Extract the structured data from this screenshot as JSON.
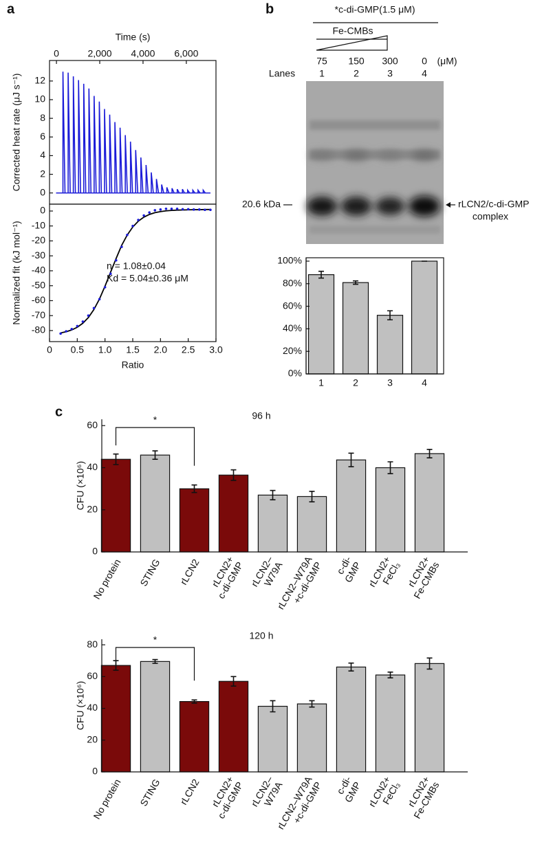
{
  "chart_data": [
    {
      "type": "spike",
      "x_label": "Time (s)",
      "y_label": "Corrected heat rate (μJ s⁻¹)",
      "color": "#1c1cd8",
      "x": [
        300,
        540,
        780,
        1020,
        1260,
        1500,
        1740,
        1980,
        2220,
        2460,
        2700,
        2940,
        3180,
        3420,
        3660,
        3900,
        4140,
        4380,
        4620,
        4860,
        5100,
        5340,
        5580,
        5820,
        6060,
        6300,
        6540,
        6780
      ],
      "values": [
        13,
        12.9,
        12.5,
        12.1,
        11.7,
        11.2,
        10.4,
        9.8,
        9.0,
        8.4,
        7.6,
        7.0,
        6.2,
        5.5,
        4.6,
        3.8,
        3.0,
        2.2,
        1.5,
        0.9,
        0.6,
        0.5,
        0.4,
        0.4,
        0.3,
        0.3,
        0.3,
        0.3
      ],
      "xlim": [
        -320,
        7370
      ],
      "xticks": [
        0,
        {
          "value": 2000,
          "label": "2,000"
        },
        {
          "value": 4000,
          "label": "4,000"
        },
        {
          "value": 6000,
          "label": "6,000"
        }
      ],
      "ylim": [
        -1.2,
        14.2
      ],
      "yticks": [
        0,
        2,
        4,
        6,
        8,
        10,
        12
      ]
    },
    {
      "type": "scatter",
      "x_label": "Ratio",
      "y_label": "Normalized fit (kJ mol⁻¹)",
      "annotations": [
        "n = 1.08±0.04",
        "Kd = 5.04±0.36 μM"
      ],
      "x": [
        0.2,
        0.3,
        0.4,
        0.5,
        0.6,
        0.7,
        0.8,
        0.9,
        1.0,
        1.1,
        1.2,
        1.3,
        1.4,
        1.5,
        1.6,
        1.7,
        1.8,
        1.9,
        2.0,
        2.1,
        2.2,
        2.3,
        2.4,
        2.5,
        2.6,
        2.7,
        2.8,
        2.9
      ],
      "series": [
        {
          "color": "#1c1cd8",
          "values": [
            -82,
            -80.5,
            -79,
            -77,
            -74,
            -70,
            -65,
            -59,
            -51,
            -42,
            -33,
            -24,
            -16,
            -10,
            -6,
            -3,
            -1,
            0.5,
            1,
            1.5,
            1.5,
            1.5,
            1.2,
            1.2,
            1,
            1,
            0.8,
            0.8
          ]
        }
      ],
      "fit": {
        "color": "#000000",
        "values": [
          -81.6,
          -80.8,
          -79.6,
          -77.8,
          -75.1,
          -71.3,
          -65.9,
          -58.9,
          -50.3,
          -41,
          -31.8,
          -23,
          -16.1,
          -10.7,
          -6.8,
          -4.1,
          -2.3,
          -1.1,
          -0.4,
          0.1,
          0.4,
          0.6,
          0.7,
          0.8,
          0.9,
          0.9,
          1,
          1
        ]
      },
      "xlim": [
        0,
        3
      ],
      "xticks": [
        0,
        0.5,
        {
          "value": 1,
          "label": "1.0"
        },
        1.5,
        {
          "value": 2,
          "label": "2.0"
        },
        2.5,
        {
          "value": 3,
          "label": "3.0"
        }
      ],
      "ylim": [
        -87.4,
        4.6
      ],
      "yticks": [
        0,
        -10,
        -20,
        -30,
        -40,
        -50,
        -60,
        -70,
        -80
      ]
    },
    {
      "type": "bar",
      "categories": [
        "1",
        "2",
        "3",
        "4"
      ],
      "values": [
        88,
        81,
        52,
        100
      ],
      "errors": [
        3,
        1.5,
        4,
        0
      ],
      "colors": [
        "#c0c0c0",
        "#c0c0c0",
        "#c0c0c0",
        "#c0c0c0"
      ],
      "ylim": [
        0,
        103
      ],
      "yticks": [
        {
          "value": 0,
          "label": "0%"
        },
        {
          "value": 20,
          "label": "20%"
        },
        {
          "value": 40,
          "label": "40%"
        },
        {
          "value": 60,
          "label": "60%"
        },
        {
          "value": 80,
          "label": "80%"
        },
        {
          "value": 100,
          "label": "100%"
        }
      ]
    },
    {
      "type": "bar",
      "title": "96 h",
      "y_label": "CFU (×10⁶)",
      "significance": "*",
      "categories": [
        "No protein",
        "STING",
        "rLCN2",
        "rLCN2+\nc-di-GMP",
        "rLCN2–\nW79A",
        "rLCN2–W79A\n+c-di-GMP",
        "c-di-\nGMP",
        "rLCN2+\nFeCl₃",
        "rLCN2+\nFe-CMBs"
      ],
      "values": [
        44,
        46,
        30,
        36.5,
        27,
        26.3,
        43.7,
        40,
        46.7
      ],
      "errors": [
        2.5,
        2,
        1.8,
        2.5,
        2.2,
        2.5,
        3.2,
        2.8,
        2
      ],
      "colors": [
        "#7a0a0a",
        "#c0c0c0",
        "#7a0a0a",
        "#7a0a0a",
        "#c0c0c0",
        "#c0c0c0",
        "#c0c0c0",
        "#c0c0c0",
        "#c0c0c0"
      ],
      "ylim": [
        0,
        63
      ],
      "yticks": [
        0,
        20,
        40,
        60
      ]
    },
    {
      "type": "bar",
      "title": "120 h",
      "y_label": "CFU (×10⁶)",
      "significance": "*",
      "categories": [
        "No protein",
        "STING",
        "rLCN2",
        "rLCN2+\nc-di-GMP",
        "rLCN2–\nW79A",
        "rLCN2–W79A\n+c-di-GMP",
        "c-di-\nGMP",
        "rLCN2+\nFeCl₃",
        "rLCN2+\nFe-CMBs"
      ],
      "values": [
        67,
        69.5,
        44.3,
        57,
        41.3,
        42.8,
        66,
        61,
        68.2
      ],
      "errors": [
        3,
        1.2,
        1,
        3,
        3.5,
        2,
        2.5,
        1.8,
        3.5
      ],
      "colors": [
        "#7a0a0a",
        "#c0c0c0",
        "#7a0a0a",
        "#7a0a0a",
        "#c0c0c0",
        "#c0c0c0",
        "#c0c0c0",
        "#c0c0c0",
        "#c0c0c0"
      ],
      "ylim": [
        0,
        83.5
      ],
      "yticks": [
        0,
        20,
        40,
        60,
        80
      ]
    }
  ],
  "panels": [
    "a",
    "b",
    "c"
  ],
  "gel": {
    "header": "*c-di-GMP(1.5 μM)",
    "gradient_label": "Fe-CMBs",
    "concentrations": [
      "75",
      "150",
      "300",
      "0"
    ],
    "unit": "(μM)",
    "lanes_label": "Lanes",
    "lanes": [
      "1",
      "2",
      "3",
      "4"
    ],
    "marker": "20.6 kDa",
    "band_label": [
      "rLCN2/c-di-GMP",
      "complex"
    ]
  }
}
